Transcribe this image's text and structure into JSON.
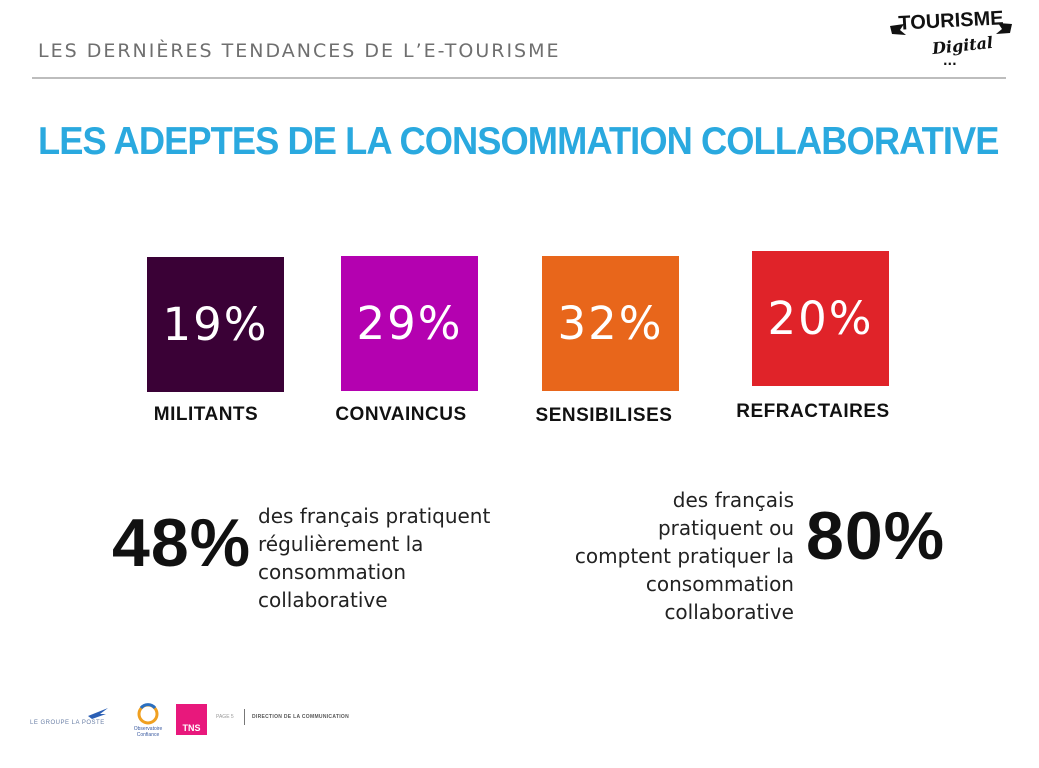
{
  "header": {
    "title": "LES DERNIÈRES TENDANCES DE L’E-TOURISME",
    "logo_main": "TOURISME",
    "logo_sub": "Digital",
    "logo_dots": "..."
  },
  "slide_title": "LES ADEPTES DE LA CONSOMMATION COLLABORATIVE",
  "segments": [
    {
      "value": "19%",
      "label": "MILITANTS",
      "color": "#3a0136"
    },
    {
      "value": "29%",
      "label": "CONVAINCUS",
      "color": "#b401b0"
    },
    {
      "value": "32%",
      "label": "SENSIBILISES",
      "color": "#e8661b"
    },
    {
      "value": "20%",
      "label": "REFRACTAIRES",
      "color": "#e02329"
    }
  ],
  "stat_left": {
    "value": "48%",
    "lines": [
      "des français pratiquent",
      "régulièrement la",
      "consommation",
      "collaborative"
    ]
  },
  "stat_right": {
    "value": "80%",
    "lines": [
      "des français",
      "pratiquent ou",
      "comptent pratiquer la",
      "consommation",
      "collaborative"
    ]
  },
  "footer": {
    "poste": "LE GROUPE LA POSTE",
    "observatoire": [
      "Observatoire",
      "Confiance"
    ],
    "tns": "TNS",
    "page": "PAGE 5",
    "direction": "DIRECTION DE LA COMMUNICATION"
  }
}
